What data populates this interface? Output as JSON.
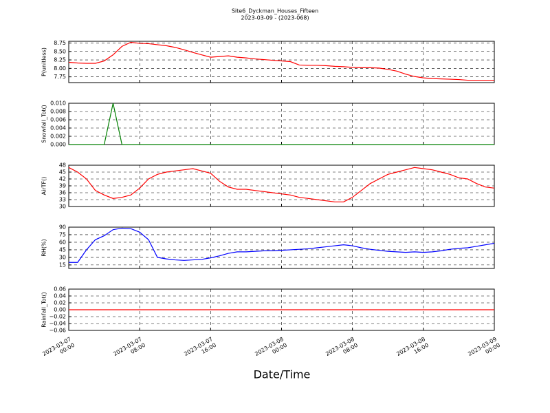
{
  "chart_data": [
    {
      "type": "line",
      "title": "Site6_Dyckman_Houses_Fifteen",
      "subtitle": "2023-03-09 - (2023-068)",
      "ylabel": "P(unitless)",
      "grid": true,
      "x": [
        "2023-03-07 00:00",
        "2023-03-07 01:00",
        "2023-03-07 02:00",
        "2023-03-07 03:00",
        "2023-03-07 04:00",
        "2023-03-07 05:00",
        "2023-03-07 06:00",
        "2023-03-07 07:00",
        "2023-03-07 08:00",
        "2023-03-07 09:00",
        "2023-03-07 10:00",
        "2023-03-07 11:00",
        "2023-03-07 12:00",
        "2023-03-07 13:00",
        "2023-03-07 14:00",
        "2023-03-07 15:00",
        "2023-03-07 16:00",
        "2023-03-07 17:00",
        "2023-03-07 18:00",
        "2023-03-07 19:00",
        "2023-03-07 20:00",
        "2023-03-07 21:00",
        "2023-03-07 22:00",
        "2023-03-07 23:00",
        "2023-03-08 00:00",
        "2023-03-08 01:00",
        "2023-03-08 02:00",
        "2023-03-08 03:00",
        "2023-03-08 04:00",
        "2023-03-08 05:00",
        "2023-03-08 06:00",
        "2023-03-08 07:00",
        "2023-03-08 08:00",
        "2023-03-08 09:00",
        "2023-03-08 10:00",
        "2023-03-08 11:00",
        "2023-03-08 12:00",
        "2023-03-08 13:00",
        "2023-03-08 14:00",
        "2023-03-08 15:00",
        "2023-03-08 16:00",
        "2023-03-08 17:00",
        "2023-03-08 18:00",
        "2023-03-08 19:00",
        "2023-03-08 20:00",
        "2023-03-08 21:00",
        "2023-03-08 22:00",
        "2023-03-08 23:00",
        "2023-03-09 00:00"
      ],
      "series": [
        {
          "color": "#ff0000",
          "values": [
            8.18,
            8.16,
            8.15,
            8.15,
            8.22,
            8.4,
            8.65,
            8.77,
            8.74,
            8.73,
            8.7,
            8.67,
            8.62,
            8.55,
            8.47,
            8.4,
            8.33,
            8.35,
            8.37,
            8.33,
            8.31,
            8.28,
            8.26,
            8.24,
            8.22,
            8.2,
            8.1,
            8.09,
            8.09,
            8.08,
            8.06,
            8.05,
            8.03,
            8.02,
            8.02,
            8.01,
            7.97,
            7.92,
            7.83,
            7.76,
            7.72,
            7.7,
            7.69,
            7.68,
            7.67,
            7.65,
            7.65,
            7.65,
            7.65
          ]
        }
      ],
      "ylim": [
        7.58,
        8.8
      ],
      "yticks": [
        {
          "value": 7.75,
          "label": "7.75"
        },
        {
          "value": 8,
          "label": "8.00"
        },
        {
          "value": 8.25,
          "label": "8.25"
        },
        {
          "value": 8.5,
          "label": "8.50"
        },
        {
          "value": 8.75,
          "label": "8.75"
        }
      ]
    },
    {
      "type": "line",
      "ylabel": "Snowfall_Tot()",
      "grid": true,
      "x": [
        "2023-03-07 00:00",
        "2023-03-07 01:00",
        "2023-03-07 02:00",
        "2023-03-07 03:00",
        "2023-03-07 04:00",
        "2023-03-07 05:00",
        "2023-03-07 06:00",
        "2023-03-07 07:00",
        "2023-03-07 08:00",
        "2023-03-07 09:00",
        "2023-03-07 10:00",
        "2023-03-07 11:00",
        "2023-03-07 12:00",
        "2023-03-07 13:00",
        "2023-03-07 14:00",
        "2023-03-07 15:00",
        "2023-03-07 16:00",
        "2023-03-07 17:00",
        "2023-03-07 18:00",
        "2023-03-07 19:00",
        "2023-03-07 20:00",
        "2023-03-07 21:00",
        "2023-03-07 22:00",
        "2023-03-07 23:00",
        "2023-03-08 00:00",
        "2023-03-08 01:00",
        "2023-03-08 02:00",
        "2023-03-08 03:00",
        "2023-03-08 04:00",
        "2023-03-08 05:00",
        "2023-03-08 06:00",
        "2023-03-08 07:00",
        "2023-03-08 08:00",
        "2023-03-08 09:00",
        "2023-03-08 10:00",
        "2023-03-08 11:00",
        "2023-03-08 12:00",
        "2023-03-08 13:00",
        "2023-03-08 14:00",
        "2023-03-08 15:00",
        "2023-03-08 16:00",
        "2023-03-08 17:00",
        "2023-03-08 18:00",
        "2023-03-08 19:00",
        "2023-03-08 20:00",
        "2023-03-08 21:00",
        "2023-03-08 22:00",
        "2023-03-08 23:00",
        "2023-03-09 00:00"
      ],
      "series": [
        {
          "color": "#007f00",
          "values": [
            0,
            0,
            0,
            0,
            0,
            0.01,
            0,
            0,
            0,
            0,
            0,
            0,
            0,
            0,
            0,
            0,
            0,
            0,
            0,
            0,
            0,
            0,
            0,
            0,
            0,
            0,
            0,
            0,
            0,
            0,
            0,
            0,
            0,
            0,
            0,
            0,
            0,
            0,
            0,
            0,
            0,
            0,
            0,
            0,
            0,
            0,
            0,
            0,
            0
          ]
        }
      ],
      "ylim": [
        0,
        0.01
      ],
      "yticks": [
        {
          "value": 0,
          "label": "0.000"
        },
        {
          "value": 0.002,
          "label": "0.002"
        },
        {
          "value": 0.004,
          "label": "0.004"
        },
        {
          "value": 0.006,
          "label": "0.006"
        },
        {
          "value": 0.008,
          "label": "0.008"
        },
        {
          "value": 0.01,
          "label": "0.010"
        }
      ]
    },
    {
      "type": "line",
      "ylabel": "AirTF()",
      "grid": true,
      "x": [
        "2023-03-07 00:00",
        "2023-03-07 01:00",
        "2023-03-07 02:00",
        "2023-03-07 03:00",
        "2023-03-07 04:00",
        "2023-03-07 05:00",
        "2023-03-07 06:00",
        "2023-03-07 07:00",
        "2023-03-07 08:00",
        "2023-03-07 09:00",
        "2023-03-07 10:00",
        "2023-03-07 11:00",
        "2023-03-07 12:00",
        "2023-03-07 13:00",
        "2023-03-07 14:00",
        "2023-03-07 15:00",
        "2023-03-07 16:00",
        "2023-03-07 17:00",
        "2023-03-07 18:00",
        "2023-03-07 19:00",
        "2023-03-07 20:00",
        "2023-03-07 21:00",
        "2023-03-07 22:00",
        "2023-03-07 23:00",
        "2023-03-08 00:00",
        "2023-03-08 01:00",
        "2023-03-08 02:00",
        "2023-03-08 03:00",
        "2023-03-08 04:00",
        "2023-03-08 05:00",
        "2023-03-08 06:00",
        "2023-03-08 07:00",
        "2023-03-08 08:00",
        "2023-03-08 09:00",
        "2023-03-08 10:00",
        "2023-03-08 11:00",
        "2023-03-08 12:00",
        "2023-03-08 13:00",
        "2023-03-08 14:00",
        "2023-03-08 15:00",
        "2023-03-08 16:00",
        "2023-03-08 17:00",
        "2023-03-08 18:00",
        "2023-03-08 19:00",
        "2023-03-08 20:00",
        "2023-03-08 21:00",
        "2023-03-08 22:00",
        "2023-03-08 23:00",
        "2023-03-09 00:00"
      ],
      "series": [
        {
          "color": "#ff0000",
          "values": [
            47,
            45,
            42,
            37,
            35,
            33.5,
            34,
            35,
            38,
            42,
            44,
            45,
            45.5,
            46,
            46.5,
            45.5,
            44.5,
            41,
            38.5,
            37.5,
            37.5,
            37,
            36.5,
            36,
            35.5,
            35,
            34,
            33.5,
            33,
            32.5,
            32,
            32,
            34,
            37,
            40,
            42,
            44,
            45,
            46,
            47,
            46.5,
            46,
            45,
            44,
            42.5,
            42,
            40,
            38.5,
            38
          ]
        }
      ],
      "ylim": [
        30,
        48
      ],
      "yticks": [
        30,
        33,
        36,
        39,
        42,
        45,
        48
      ]
    },
    {
      "type": "line",
      "ylabel": "RH(%)",
      "grid": true,
      "x": [
        "2023-03-07 00:00",
        "2023-03-07 01:00",
        "2023-03-07 02:00",
        "2023-03-07 03:00",
        "2023-03-07 04:00",
        "2023-03-07 05:00",
        "2023-03-07 06:00",
        "2023-03-07 07:00",
        "2023-03-07 08:00",
        "2023-03-07 09:00",
        "2023-03-07 10:00",
        "2023-03-07 11:00",
        "2023-03-07 12:00",
        "2023-03-07 13:00",
        "2023-03-07 14:00",
        "2023-03-07 15:00",
        "2023-03-07 16:00",
        "2023-03-07 17:00",
        "2023-03-07 18:00",
        "2023-03-07 19:00",
        "2023-03-07 20:00",
        "2023-03-07 21:00",
        "2023-03-07 22:00",
        "2023-03-07 23:00",
        "2023-03-08 00:00",
        "2023-03-08 01:00",
        "2023-03-08 02:00",
        "2023-03-08 03:00",
        "2023-03-08 04:00",
        "2023-03-08 05:00",
        "2023-03-08 06:00",
        "2023-03-08 07:00",
        "2023-03-08 08:00",
        "2023-03-08 09:00",
        "2023-03-08 10:00",
        "2023-03-08 11:00",
        "2023-03-08 12:00",
        "2023-03-08 13:00",
        "2023-03-08 14:00",
        "2023-03-08 15:00",
        "2023-03-08 16:00",
        "2023-03-08 17:00",
        "2023-03-08 18:00",
        "2023-03-08 19:00",
        "2023-03-08 20:00",
        "2023-03-08 21:00",
        "2023-03-08 22:00",
        "2023-03-08 23:00",
        "2023-03-09 00:00"
      ],
      "series": [
        {
          "color": "#0000ff",
          "values": [
            20,
            20,
            45,
            65,
            73,
            85,
            88,
            87,
            80,
            65,
            30,
            27,
            25,
            24,
            25,
            26,
            29,
            33,
            38,
            41,
            41,
            42,
            43,
            43,
            44,
            45,
            46,
            47,
            49,
            51,
            53,
            55,
            53,
            49,
            46,
            44,
            42,
            41,
            40,
            41,
            40,
            41,
            43,
            46,
            48,
            49,
            52,
            55,
            58
          ]
        }
      ],
      "ylim": [
        8,
        90
      ],
      "yticks": [
        15,
        30,
        45,
        60,
        75,
        90
      ]
    },
    {
      "type": "line",
      "ylabel": "Rainfall_Tot()",
      "xlabel": "Date/Time",
      "grid": true,
      "x": [
        "2023-03-07 00:00",
        "2023-03-07 01:00",
        "2023-03-07 02:00",
        "2023-03-07 03:00",
        "2023-03-07 04:00",
        "2023-03-07 05:00",
        "2023-03-07 06:00",
        "2023-03-07 07:00",
        "2023-03-07 08:00",
        "2023-03-07 09:00",
        "2023-03-07 10:00",
        "2023-03-07 11:00",
        "2023-03-07 12:00",
        "2023-03-07 13:00",
        "2023-03-07 14:00",
        "2023-03-07 15:00",
        "2023-03-07 16:00",
        "2023-03-07 17:00",
        "2023-03-07 18:00",
        "2023-03-07 19:00",
        "2023-03-07 20:00",
        "2023-03-07 21:00",
        "2023-03-07 22:00",
        "2023-03-07 23:00",
        "2023-03-08 00:00",
        "2023-03-08 01:00",
        "2023-03-08 02:00",
        "2023-03-08 03:00",
        "2023-03-08 04:00",
        "2023-03-08 05:00",
        "2023-03-08 06:00",
        "2023-03-08 07:00",
        "2023-03-08 08:00",
        "2023-03-08 09:00",
        "2023-03-08 10:00",
        "2023-03-08 11:00",
        "2023-03-08 12:00",
        "2023-03-08 13:00",
        "2023-03-08 14:00",
        "2023-03-08 15:00",
        "2023-03-08 16:00",
        "2023-03-08 17:00",
        "2023-03-08 18:00",
        "2023-03-08 19:00",
        "2023-03-08 20:00",
        "2023-03-08 21:00",
        "2023-03-08 22:00",
        "2023-03-08 23:00",
        "2023-03-09 00:00"
      ],
      "series": [
        {
          "color": "#ff0000",
          "values": [
            0,
            0,
            0,
            0,
            0,
            0,
            0,
            0,
            0,
            0,
            0,
            0,
            0,
            0,
            0,
            0,
            0,
            0,
            0,
            0,
            0,
            0,
            0,
            0,
            0,
            0,
            0,
            0,
            0,
            0,
            0,
            0,
            0,
            0,
            0,
            0,
            0,
            0,
            0,
            0,
            0,
            0,
            0,
            0,
            0,
            0,
            0,
            0,
            0
          ]
        }
      ],
      "ylim": [
        -0.06,
        0.06
      ],
      "yticks": [
        {
          "value": -0.06,
          "label": "−0.06"
        },
        {
          "value": -0.04,
          "label": "−0.04"
        },
        {
          "value": -0.02,
          "label": "−0.02"
        },
        {
          "value": 0,
          "label": "0.00"
        },
        0.02,
        0.04,
        0.06
      ],
      "xlim": [
        "2023-03-07 00:00",
        "2023-03-09 00:00"
      ],
      "xticks": [
        {
          "value": "2023-03-07 00:00",
          "label": "2023-03-07\n00:00"
        },
        {
          "value": "2023-03-07 08:00",
          "label": "2023-03-07\n08:00"
        },
        {
          "value": "2023-03-07 16:00",
          "label": "2023-03-07\n16:00"
        },
        {
          "value": "2023-03-08 00:00",
          "label": "2023-03-08\n00:00"
        },
        {
          "value": "2023-03-08 08:00",
          "label": "2023-03-08\n08:00"
        },
        {
          "value": "2023-03-08 16:00",
          "label": "2023-03-08\n16:00"
        },
        {
          "value": "2023-03-09 00:00",
          "label": "2023-03-09\n00:00"
        }
      ]
    }
  ]
}
